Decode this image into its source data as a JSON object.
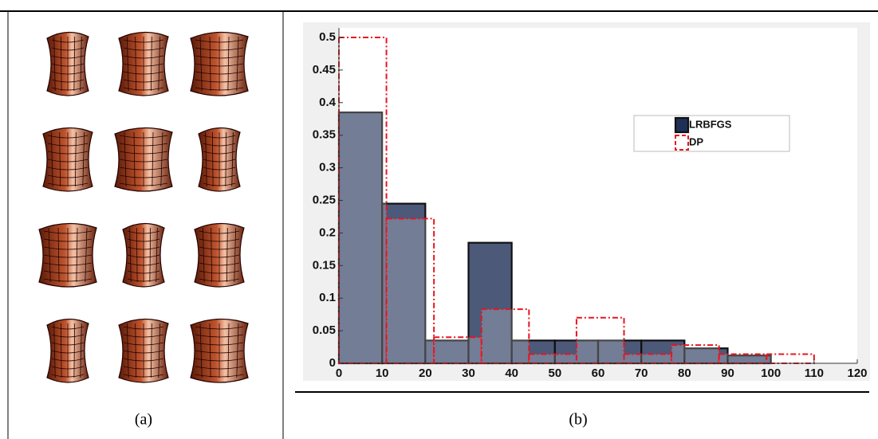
{
  "captions": [
    "(a)",
    "(b)"
  ],
  "chart_data": {
    "type": "histogram",
    "xlim": [
      0,
      120
    ],
    "xticks": [
      0,
      10,
      20,
      30,
      40,
      50,
      60,
      70,
      80,
      90,
      100,
      110,
      120
    ],
    "ylim": [
      0,
      0.5
    ],
    "yticks": [
      0,
      0.05,
      0.1,
      0.15,
      0.2,
      0.25,
      0.3,
      0.35,
      0.4,
      0.45,
      0.5
    ],
    "legend": "upper right",
    "series": [
      {
        "name": "LRBFGS",
        "color": "#1f3057",
        "style": "solid",
        "bins": [
          0,
          10,
          20,
          30,
          40,
          50,
          60,
          70,
          80,
          90,
          100
        ],
        "values": [
          0.385,
          0.245,
          0.035,
          0.185,
          0.035,
          0.035,
          0.035,
          0.035,
          0.023,
          0.012
        ]
      },
      {
        "name": "DP",
        "color": "#e8141e",
        "style": "dashed",
        "bins": [
          0,
          11,
          22,
          33,
          44,
          55,
          66,
          77,
          88,
          99,
          110
        ],
        "values": [
          0.5,
          0.222,
          0.04,
          0.083,
          0.014,
          0.07,
          0.014,
          0.028,
          0.014,
          0.014
        ]
      }
    ]
  }
}
